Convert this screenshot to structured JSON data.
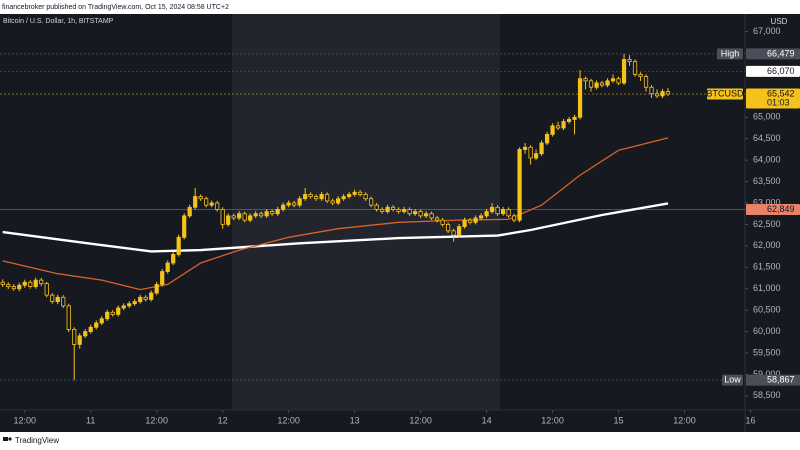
{
  "chart_data": {
    "type": "candlestick",
    "header": "financebroker published on TradingView.com, Oct 15, 2024 08:58 UTC+2",
    "title": "Bitcoin / U.S. Dollar, 1h, BITSTAMP",
    "currency": "USD",
    "footer": "TradingView",
    "up_color": "#f5c21b",
    "down_color": "#f5c21b",
    "x": [
      -16,
      -15,
      -14,
      -13,
      -12,
      -11,
      -10,
      -9,
      -8,
      -7,
      -6,
      -5,
      -4,
      -3,
      -2,
      -1,
      0,
      1,
      2,
      3,
      4,
      5,
      6,
      7,
      8,
      9,
      10,
      11,
      12,
      13,
      14,
      15,
      16,
      17,
      18,
      19,
      20,
      21,
      22,
      23,
      24,
      25,
      26,
      27,
      28,
      29,
      30,
      31,
      32,
      33,
      34,
      35,
      36,
      37,
      38,
      39,
      40,
      41,
      42,
      43,
      44,
      45,
      46,
      47,
      48,
      49,
      50,
      51,
      52,
      53,
      54,
      55,
      56,
      57,
      58,
      59,
      60,
      61,
      62,
      63,
      64,
      65,
      66,
      67,
      68,
      69,
      70,
      71,
      72,
      73,
      74,
      75,
      76,
      77,
      78,
      79,
      80,
      81,
      82,
      83,
      84,
      85,
      86,
      87,
      88,
      89,
      90,
      91,
      92,
      93,
      94,
      95,
      96,
      97,
      98,
      99,
      100,
      101,
      102,
      103,
      104,
      105
    ],
    "open": [
      61150,
      61100,
      61050,
      61000,
      61080,
      61150,
      61050,
      61200,
      61120,
      60850,
      60700,
      60800,
      60600,
      60050,
      59700,
      59900,
      60000,
      60100,
      60200,
      60300,
      60450,
      60400,
      60550,
      60600,
      60650,
      60700,
      60800,
      60750,
      60900,
      61100,
      61400,
      61600,
      61800,
      62200,
      62700,
      62900,
      63150,
      63100,
      62950,
      63000,
      62850,
      62500,
      62700,
      62650,
      62750,
      62600,
      62700,
      62750,
      62700,
      62800,
      62750,
      62850,
      62950,
      63000,
      62950,
      63100,
      63200,
      63150,
      63100,
      63200,
      63050,
      63000,
      63100,
      63150,
      63200,
      63250,
      63200,
      63100,
      62950,
      62850,
      62800,
      62900,
      62850,
      62800,
      62850,
      62750,
      62800,
      62700,
      62750,
      62650,
      62600,
      62500,
      62350,
      62250,
      62450,
      62600,
      62550,
      62650,
      62700,
      62800,
      62900,
      62750,
      62850,
      62700,
      62600,
      64250,
      64300,
      64050,
      64150,
      64400,
      64600,
      64800,
      64750,
      64900,
      64950,
      65000,
      65900,
      65850,
      65700,
      65800,
      65750,
      65850,
      65900,
      65800,
      66350,
      66300,
      66000,
      65950,
      65700,
      65550,
      65500,
      65600
    ],
    "high": [
      61220,
      61150,
      61110,
      61140,
      61210,
      61200,
      61260,
      61250,
      61160,
      60900,
      60860,
      60850,
      60650,
      60100,
      59960,
      60060,
      60160,
      60260,
      60360,
      60510,
      60500,
      60610,
      60660,
      60710,
      60760,
      60860,
      60850,
      60960,
      61160,
      61460,
      61660,
      61860,
      62260,
      62760,
      62960,
      63350,
      63200,
      63150,
      63060,
      63050,
      62900,
      62760,
      62750,
      62810,
      62800,
      62760,
      62810,
      62800,
      62860,
      62850,
      62910,
      63010,
      63060,
      63050,
      63160,
      63350,
      63250,
      63200,
      63260,
      63250,
      63100,
      63160,
      63210,
      63260,
      63310,
      63300,
      63250,
      63150,
      63000,
      62900,
      62960,
      62950,
      62900,
      62910,
      62900,
      62860,
      62850,
      62810,
      62800,
      62700,
      62650,
      62550,
      62400,
      62510,
      62660,
      62650,
      62710,
      62760,
      62860,
      63000,
      62950,
      62910,
      62900,
      62750,
      64300,
      64400,
      64350,
      64250,
      64460,
      64660,
      64860,
      64900,
      64960,
      65010,
      65060,
      66100,
      65950,
      65900,
      65860,
      65850,
      65910,
      66000,
      65950,
      66479,
      66450,
      66350,
      66050,
      66000,
      65750,
      65650,
      65660,
      65680
    ],
    "low": [
      61040,
      60990,
      60950,
      60940,
      61020,
      61000,
      61000,
      61060,
      60800,
      60650,
      60640,
      60550,
      59990,
      58867,
      59600,
      59850,
      59950,
      60050,
      60150,
      60250,
      60350,
      60350,
      60500,
      60550,
      60600,
      60650,
      60700,
      60700,
      60850,
      61050,
      61350,
      61550,
      61750,
      62150,
      62650,
      62850,
      63050,
      62900,
      62900,
      62800,
      62400,
      62450,
      62600,
      62600,
      62550,
      62550,
      62650,
      62650,
      62650,
      62700,
      62700,
      62800,
      62900,
      62900,
      62900,
      63050,
      63100,
      63050,
      63050,
      63000,
      62950,
      62950,
      63050,
      63100,
      63150,
      63150,
      63050,
      62900,
      62800,
      62750,
      62750,
      62800,
      62750,
      62750,
      62700,
      62700,
      62650,
      62650,
      62600,
      62550,
      62450,
      62300,
      62100,
      62200,
      62400,
      62500,
      62500,
      62600,
      62650,
      62750,
      62700,
      62700,
      62650,
      62550,
      62550,
      64150,
      63900,
      64000,
      64100,
      64350,
      64550,
      64700,
      64700,
      64850,
      64600,
      64950,
      65650,
      65600,
      65650,
      65700,
      65700,
      65800,
      65750,
      65750,
      66200,
      65950,
      65850,
      65600,
      65450,
      65450,
      65450,
      65500
    ],
    "close": [
      61100,
      61050,
      61000,
      61080,
      61150,
      61050,
      61200,
      61120,
      60850,
      60700,
      60800,
      60600,
      60050,
      59700,
      59900,
      60000,
      60100,
      60200,
      60300,
      60450,
      60400,
      60550,
      60600,
      60650,
      60700,
      60800,
      60750,
      60900,
      61100,
      61400,
      61600,
      61800,
      62200,
      62700,
      62900,
      63150,
      63100,
      62950,
      63000,
      62850,
      62500,
      62700,
      62650,
      62750,
      62600,
      62700,
      62750,
      62700,
      62800,
      62750,
      62850,
      62950,
      63000,
      62950,
      63100,
      63200,
      63150,
      63100,
      63200,
      63050,
      63000,
      63100,
      63150,
      63200,
      63250,
      63200,
      63100,
      62950,
      62850,
      62800,
      62900,
      62850,
      62800,
      62850,
      62750,
      62800,
      62700,
      62750,
      62650,
      62600,
      62500,
      62350,
      62250,
      62450,
      62600,
      62550,
      62650,
      62700,
      62800,
      62900,
      62750,
      62850,
      62700,
      62600,
      64250,
      64300,
      64050,
      64150,
      64400,
      64600,
      64800,
      64750,
      64900,
      64950,
      65000,
      65900,
      65850,
      65700,
      65800,
      65750,
      65850,
      65900,
      65800,
      66350,
      66300,
      66000,
      65950,
      65700,
      65550,
      65500,
      65600,
      65542
    ],
    "overlays": [
      {
        "color": "#ffffff",
        "x": [
          -16,
          0,
          11,
          20,
          38,
          56,
          74,
          80,
          93,
          105
        ],
        "values": [
          62320,
          62050,
          61870,
          61900,
          62060,
          62180,
          62240,
          62370,
          62720,
          62990
        ]
      },
      {
        "color": "#d8622a",
        "x": [
          -16,
          -6,
          2,
          9,
          14,
          20,
          27,
          36,
          45,
          56,
          67,
          76,
          82,
          89,
          96,
          105
        ],
        "values": [
          61650,
          61350,
          61200,
          60980,
          61100,
          61600,
          61900,
          62200,
          62400,
          62550,
          62600,
          62620,
          62950,
          63650,
          64230,
          64520
        ]
      }
    ],
    "price_lines": [
      {
        "label": "High",
        "value": 66479,
        "value_label": "66,479",
        "color": "#4a4e58",
        "text_color": "#ffffff",
        "line_color": "#5d606b"
      },
      {
        "value": 66070,
        "value_label": "66,070",
        "color": "#ffffff",
        "text_color": "#131722",
        "line_color": "#5d606b"
      },
      {
        "label": "BTCUSD",
        "value": 65542,
        "value_label": "65,542",
        "countdown": "01:03",
        "color": "#f5c21b",
        "text_color": "#131722",
        "line_color": "#f5c21b"
      },
      {
        "value": 62849,
        "value_label": "62,849",
        "color": "#e8836a",
        "text_color": "#131722",
        "line_color": "#b5615a"
      },
      {
        "label": "Low",
        "value": 58867,
        "value_label": "58,867",
        "color": "#4a4e58",
        "text_color": "#ffffff",
        "line_color": "#5d606b"
      }
    ],
    "xlim": [
      -16.5,
      119
    ],
    "ylim": [
      58170,
      67410
    ],
    "xticks": [
      {
        "value": -12,
        "label": "12:00"
      },
      {
        "value": 0,
        "label": "11"
      },
      {
        "value": 12,
        "label": "12:00"
      },
      {
        "value": 24,
        "label": "12"
      },
      {
        "value": 36,
        "label": "12:00"
      },
      {
        "value": 48,
        "label": "13"
      },
      {
        "value": 60,
        "label": "12:00"
      },
      {
        "value": 72,
        "label": "14"
      },
      {
        "value": 84,
        "label": "12:00"
      },
      {
        "value": 96,
        "label": "15"
      },
      {
        "value": 108,
        "label": "12:00"
      },
      {
        "value": 120,
        "label": "16"
      }
    ],
    "yticks": [
      {
        "value": 58500,
        "label": "58,500"
      },
      {
        "value": 59000,
        "label": "59,000"
      },
      {
        "value": 59500,
        "label": "59,500"
      },
      {
        "value": 60000,
        "label": "60,000"
      },
      {
        "value": 60500,
        "label": "60,500"
      },
      {
        "value": 61000,
        "label": "61,000"
      },
      {
        "value": 61500,
        "label": "61,500"
      },
      {
        "value": 62000,
        "label": "62,000"
      },
      {
        "value": 62500,
        "label": "62,500"
      },
      {
        "value": 63000,
        "label": "63,000"
      },
      {
        "value": 63500,
        "label": "63,500"
      },
      {
        "value": 64000,
        "label": "64,000"
      },
      {
        "value": 64500,
        "label": "64,500"
      },
      {
        "value": 65000,
        "label": "65,000"
      },
      {
        "value": 67000,
        "label": "67,000"
      }
    ]
  }
}
